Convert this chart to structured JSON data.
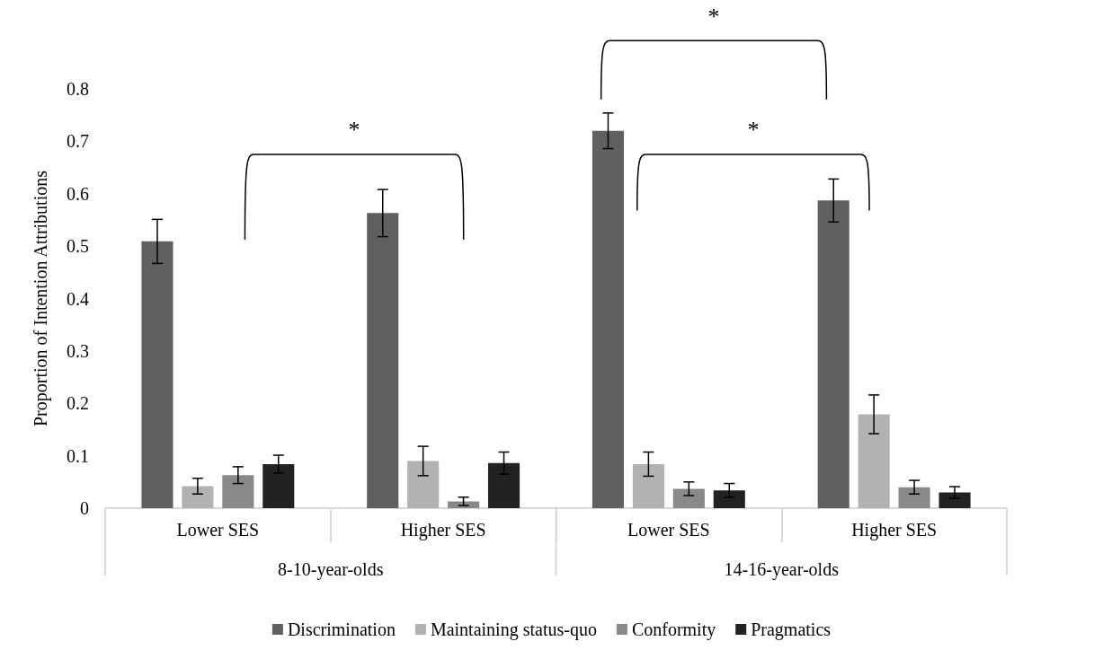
{
  "chart_data": {
    "type": "bar",
    "ylabel": "Proportion of Intention Attributions",
    "categories": [
      "Lower SES",
      "Higher SES",
      "Lower SES",
      "Higher SES"
    ],
    "series": [
      {
        "name": "Discrimination",
        "color": "#606060",
        "values": [
          0.509,
          0.563,
          0.72,
          0.587
        ],
        "errors": [
          0.042,
          0.045,
          0.034,
          0.041
        ]
      },
      {
        "name": "Maintaining status-quo",
        "color": "#b2b2b2",
        "values": [
          0.042,
          0.09,
          0.084,
          0.179
        ],
        "errors": [
          0.015,
          0.028,
          0.023,
          0.037
        ]
      },
      {
        "name": "Conformity",
        "color": "#898989",
        "values": [
          0.063,
          0.013,
          0.037,
          0.04
        ],
        "errors": [
          0.016,
          0.008,
          0.013,
          0.013
        ]
      },
      {
        "name": "Pragmatics",
        "color": "#222222",
        "values": [
          0.084,
          0.086,
          0.034,
          0.03
        ],
        "errors": [
          0.017,
          0.021,
          0.013,
          0.011
        ]
      }
    ],
    "ylim": [
      0,
      0.8
    ],
    "yticks": [
      0,
      0.1,
      0.2,
      0.3,
      0.4,
      0.5,
      0.6,
      0.7,
      0.8
    ],
    "grid": false,
    "legend": "bottom",
    "annotations": [
      "8-10-year-olds",
      "14-16-year-olds",
      "*",
      "*",
      "*"
    ]
  }
}
